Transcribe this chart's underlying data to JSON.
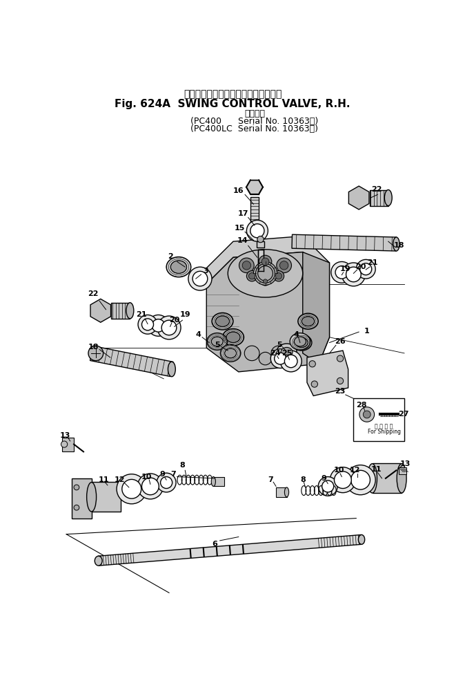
{
  "title_japanese": "旋　回　コントロール　バルブ，　右",
  "title_english": "Fig. 624A  SWING CONTROL VALVE, R.H.",
  "subtitle_header": "適用号機",
  "subtitle_line1": "(PC400      Serial No. 10363～)",
  "subtitle_line2": "(PC400LC  Serial No. 10363～)",
  "bg_color": "#ffffff",
  "line_color": "#000000"
}
